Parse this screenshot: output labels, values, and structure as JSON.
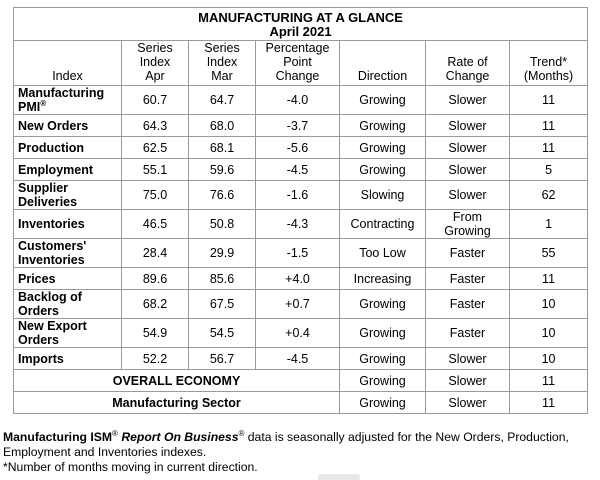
{
  "title": "MANUFACTURING AT A GLANCE",
  "subtitle": "April 2021",
  "headers": {
    "index": "Index",
    "series_apr": [
      "Series",
      "Index",
      "Apr"
    ],
    "series_mar": [
      "Series",
      "Index",
      "Mar"
    ],
    "pct_change": [
      "Percentage",
      "Point",
      "Change"
    ],
    "direction": "Direction",
    "rate": [
      "Rate of",
      "Change"
    ],
    "trend": [
      "Trend*",
      "(Months)"
    ]
  },
  "rows": [
    {
      "name": [
        "Manufacturing",
        "PMI"
      ],
      "sup": "®",
      "apr": "60.7",
      "mar": "64.7",
      "chg": "-4.0",
      "dir": "Growing",
      "rate": [
        "Slower"
      ],
      "trend": "11"
    },
    {
      "name": [
        "New Orders"
      ],
      "apr": "64.3",
      "mar": "68.0",
      "chg": "-3.7",
      "dir": "Growing",
      "rate": [
        "Slower"
      ],
      "trend": "11"
    },
    {
      "name": [
        "Production"
      ],
      "apr": "62.5",
      "mar": "68.1",
      "chg": "-5.6",
      "dir": "Growing",
      "rate": [
        "Slower"
      ],
      "trend": "11"
    },
    {
      "name": [
        "Employment"
      ],
      "apr": "55.1",
      "mar": "59.6",
      "chg": "-4.5",
      "dir": "Growing",
      "rate": [
        "Slower"
      ],
      "trend": "5"
    },
    {
      "name": [
        "Supplier",
        "Deliveries"
      ],
      "apr": "75.0",
      "mar": "76.6",
      "chg": "-1.6",
      "dir": "Slowing",
      "rate": [
        "Slower"
      ],
      "trend": "62"
    },
    {
      "name": [
        "Inventories"
      ],
      "apr": "46.5",
      "mar": "50.8",
      "chg": "-4.3",
      "dir": "Contracting",
      "rate": [
        "From",
        "Growing"
      ],
      "trend": "1"
    },
    {
      "name": [
        "Customers'",
        "Inventories"
      ],
      "apr": "28.4",
      "mar": "29.9",
      "chg": "-1.5",
      "dir": "Too Low",
      "rate": [
        "Faster"
      ],
      "trend": "55"
    },
    {
      "name": [
        "Prices"
      ],
      "apr": "89.6",
      "mar": "85.6",
      "chg": "+4.0",
      "dir": "Increasing",
      "rate": [
        "Faster"
      ],
      "trend": "11"
    },
    {
      "name": [
        "Backlog of",
        "Orders"
      ],
      "apr": "68.2",
      "mar": "67.5",
      "chg": "+0.7",
      "dir": "Growing",
      "rate": [
        "Faster"
      ],
      "trend": "10"
    },
    {
      "name": [
        "New Export",
        "Orders"
      ],
      "apr": "54.9",
      "mar": "54.5",
      "chg": "+0.4",
      "dir": "Growing",
      "rate": [
        "Faster"
      ],
      "trend": "10"
    },
    {
      "name": [
        "Imports"
      ],
      "apr": "52.2",
      "mar": "56.7",
      "chg": "-4.5",
      "dir": "Growing",
      "rate": [
        "Slower"
      ],
      "trend": "10"
    }
  ],
  "summary_rows": [
    {
      "label": "OVERALL ECONOMY",
      "dir": "Growing",
      "rate": "Slower",
      "trend": "11"
    },
    {
      "label": "Manufacturing Sector",
      "dir": "Growing",
      "rate": "Slower",
      "trend": "11"
    }
  ],
  "footer": {
    "brand": "Manufacturing ISM",
    "reg1": "®",
    "report": "Report On Business",
    "reg2": "®",
    "rest": " data is seasonally adjusted for the New Orders, Production, Employment and Inventories indexes.",
    "note": "*Number of months moving in current direction."
  }
}
